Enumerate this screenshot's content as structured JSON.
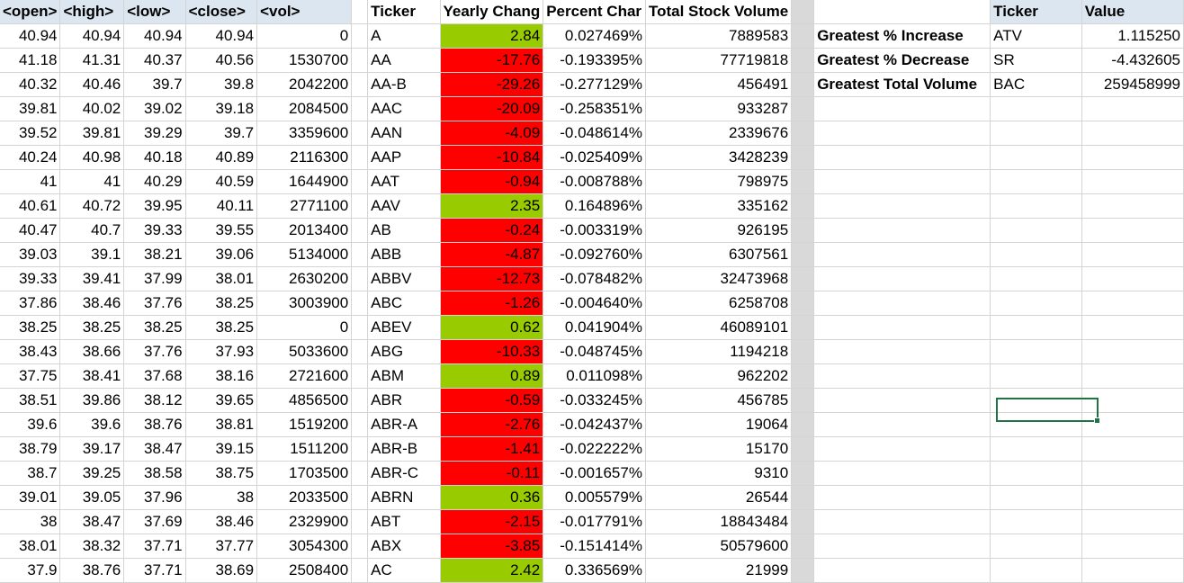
{
  "headers": {
    "open": "<open>",
    "high": "<high>",
    "low": "<low>",
    "close": "<close>",
    "vol": "<vol>",
    "ticker": "Ticker",
    "yearly_change": "Yearly Chang",
    "percent_change": "Percent Char",
    "total_volume": "Total Stock Volume",
    "summary_ticker": "Ticker",
    "summary_value": "Value"
  },
  "colors": {
    "positive": "#99cc00",
    "negative": "#ff0000",
    "header_fill": "#dce6f1",
    "divider": "#d9d9d9",
    "selection": "#217346"
  },
  "rows": [
    {
      "open": "40.94",
      "high": "40.94",
      "low": "40.94",
      "close": "40.94",
      "vol": "0",
      "ticker": "A",
      "yc": "2.84",
      "pc": "0.027469%",
      "tv": "7889583",
      "sign": "pos"
    },
    {
      "open": "41.18",
      "high": "41.31",
      "low": "40.37",
      "close": "40.56",
      "vol": "1530700",
      "ticker": "AA",
      "yc": "-17.76",
      "pc": "-0.193395%",
      "tv": "77719818",
      "sign": "neg"
    },
    {
      "open": "40.32",
      "high": "40.46",
      "low": "39.7",
      "close": "39.8",
      "vol": "2042200",
      "ticker": "AA-B",
      "yc": "-29.26",
      "pc": "-0.277129%",
      "tv": "456491",
      "sign": "neg"
    },
    {
      "open": "39.81",
      "high": "40.02",
      "low": "39.02",
      "close": "39.18",
      "vol": "2084500",
      "ticker": "AAC",
      "yc": "-20.09",
      "pc": "-0.258351%",
      "tv": "933287",
      "sign": "neg"
    },
    {
      "open": "39.52",
      "high": "39.81",
      "low": "39.29",
      "close": "39.7",
      "vol": "3359600",
      "ticker": "AAN",
      "yc": "-4.09",
      "pc": "-0.048614%",
      "tv": "2339676",
      "sign": "neg"
    },
    {
      "open": "40.24",
      "high": "40.98",
      "low": "40.18",
      "close": "40.89",
      "vol": "2116300",
      "ticker": "AAP",
      "yc": "-10.84",
      "pc": "-0.025409%",
      "tv": "3428239",
      "sign": "neg"
    },
    {
      "open": "41",
      "high": "41",
      "low": "40.29",
      "close": "40.59",
      "vol": "1644900",
      "ticker": "AAT",
      "yc": "-0.94",
      "pc": "-0.008788%",
      "tv": "798975",
      "sign": "neg"
    },
    {
      "open": "40.61",
      "high": "40.72",
      "low": "39.95",
      "close": "40.11",
      "vol": "2771100",
      "ticker": "AAV",
      "yc": "2.35",
      "pc": "0.164896%",
      "tv": "335162",
      "sign": "pos"
    },
    {
      "open": "40.47",
      "high": "40.7",
      "low": "39.33",
      "close": "39.55",
      "vol": "2013400",
      "ticker": "AB",
      "yc": "-0.24",
      "pc": "-0.003319%",
      "tv": "926195",
      "sign": "neg"
    },
    {
      "open": "39.03",
      "high": "39.1",
      "low": "38.21",
      "close": "39.06",
      "vol": "5134000",
      "ticker": "ABB",
      "yc": "-4.87",
      "pc": "-0.092760%",
      "tv": "6307561",
      "sign": "neg"
    },
    {
      "open": "39.33",
      "high": "39.41",
      "low": "37.99",
      "close": "38.01",
      "vol": "2630200",
      "ticker": "ABBV",
      "yc": "-12.73",
      "pc": "-0.078482%",
      "tv": "32473968",
      "sign": "neg"
    },
    {
      "open": "37.86",
      "high": "38.46",
      "low": "37.76",
      "close": "38.25",
      "vol": "3003900",
      "ticker": "ABC",
      "yc": "-1.26",
      "pc": "-0.004640%",
      "tv": "6258708",
      "sign": "neg"
    },
    {
      "open": "38.25",
      "high": "38.25",
      "low": "38.25",
      "close": "38.25",
      "vol": "0",
      "ticker": "ABEV",
      "yc": "0.62",
      "pc": "0.041904%",
      "tv": "46089101",
      "sign": "pos"
    },
    {
      "open": "38.43",
      "high": "38.66",
      "low": "37.76",
      "close": "37.93",
      "vol": "5033600",
      "ticker": "ABG",
      "yc": "-10.33",
      "pc": "-0.048745%",
      "tv": "1194218",
      "sign": "neg"
    },
    {
      "open": "37.75",
      "high": "38.41",
      "low": "37.68",
      "close": "38.16",
      "vol": "2721600",
      "ticker": "ABM",
      "yc": "0.89",
      "pc": "0.011098%",
      "tv": "962202",
      "sign": "pos"
    },
    {
      "open": "38.51",
      "high": "39.86",
      "low": "38.12",
      "close": "39.65",
      "vol": "4856500",
      "ticker": "ABR",
      "yc": "-0.59",
      "pc": "-0.033245%",
      "tv": "456785",
      "sign": "neg"
    },
    {
      "open": "39.6",
      "high": "39.6",
      "low": "38.76",
      "close": "38.81",
      "vol": "1519200",
      "ticker": "ABR-A",
      "yc": "-2.76",
      "pc": "-0.042437%",
      "tv": "19064",
      "sign": "neg"
    },
    {
      "open": "38.79",
      "high": "39.17",
      "low": "38.47",
      "close": "39.15",
      "vol": "1511200",
      "ticker": "ABR-B",
      "yc": "-1.41",
      "pc": "-0.022222%",
      "tv": "15170",
      "sign": "neg"
    },
    {
      "open": "38.7",
      "high": "39.25",
      "low": "38.58",
      "close": "38.75",
      "vol": "1703500",
      "ticker": "ABR-C",
      "yc": "-0.11",
      "pc": "-0.001657%",
      "tv": "9310",
      "sign": "neg"
    },
    {
      "open": "39.01",
      "high": "39.05",
      "low": "37.96",
      "close": "38",
      "vol": "2033500",
      "ticker": "ABRN",
      "yc": "0.36",
      "pc": "0.005579%",
      "tv": "26544",
      "sign": "pos"
    },
    {
      "open": "38",
      "high": "38.47",
      "low": "37.69",
      "close": "38.46",
      "vol": "2329900",
      "ticker": "ABT",
      "yc": "-2.15",
      "pc": "-0.017791%",
      "tv": "18843484",
      "sign": "neg"
    },
    {
      "open": "38.01",
      "high": "38.32",
      "low": "37.71",
      "close": "37.77",
      "vol": "3054300",
      "ticker": "ABX",
      "yc": "-3.85",
      "pc": "-0.151414%",
      "tv": "50579600",
      "sign": "neg"
    },
    {
      "open": "37.9",
      "high": "38.76",
      "low": "37.71",
      "close": "38.69",
      "vol": "2508400",
      "ticker": "AC",
      "yc": "2.42",
      "pc": "0.336569%",
      "tv": "21999",
      "sign": "pos"
    }
  ],
  "summary": [
    {
      "label": "Greatest % Increase",
      "ticker": "ATV",
      "value": "1.115250"
    },
    {
      "label": "Greatest % Decrease",
      "ticker": "SR",
      "value": "-4.432605"
    },
    {
      "label": "Greatest Total Volume",
      "ticker": "BAC",
      "value": "259458999"
    }
  ]
}
